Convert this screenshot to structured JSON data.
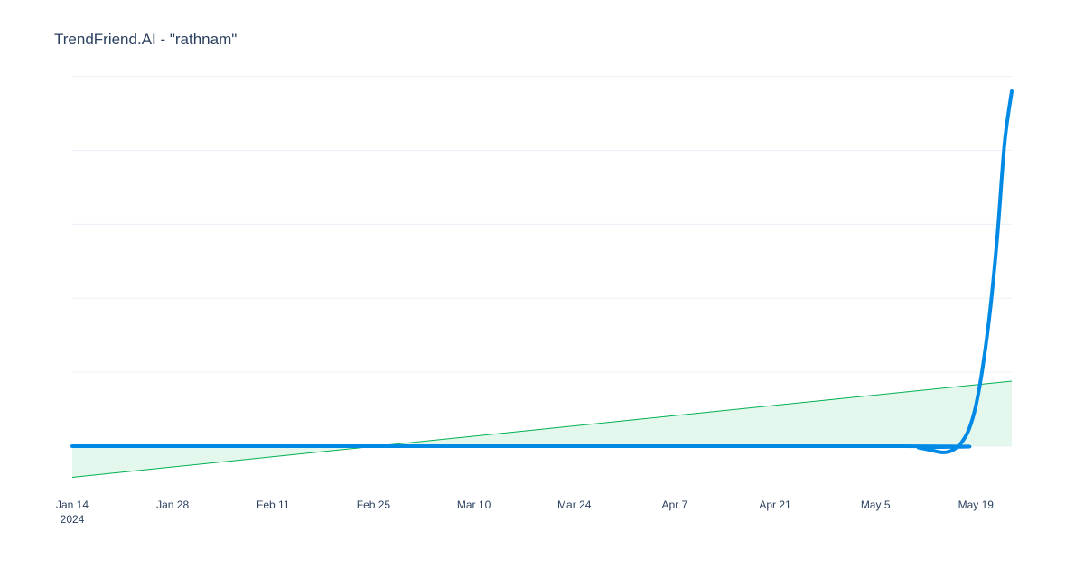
{
  "chart_data": {
    "type": "line",
    "title": "TrendFriend.AI - \"rathnam\"",
    "x_ticks": [
      {
        "date": "2024-01-14",
        "label": "Jan 14",
        "sublabel": "2024"
      },
      {
        "date": "2024-01-28",
        "label": "Jan 28"
      },
      {
        "date": "2024-02-11",
        "label": "Feb 11"
      },
      {
        "date": "2024-02-25",
        "label": "Feb 25"
      },
      {
        "date": "2024-03-10",
        "label": "Mar 10"
      },
      {
        "date": "2024-03-24",
        "label": "Mar 24"
      },
      {
        "date": "2024-04-07",
        "label": "Apr 7"
      },
      {
        "date": "2024-04-21",
        "label": "Apr 21"
      },
      {
        "date": "2024-05-05",
        "label": "May 5"
      },
      {
        "date": "2024-05-19",
        "label": "May 19"
      }
    ],
    "xlim": [
      "2024-01-14",
      "2024-05-24"
    ],
    "ylim": [
      -0.5,
      5.3
    ],
    "grid": {
      "y_values": [
        0,
        1,
        2,
        3,
        4,
        5
      ]
    },
    "y_tick_labels_shown": false,
    "series": [
      {
        "kind": "line",
        "color": "#008ae6",
        "points": [
          {
            "x": "2024-01-14",
            "y": 0
          },
          {
            "x": "2024-05-09",
            "y": 0
          },
          {
            "x": "2024-05-11",
            "y": -0.02
          },
          {
            "x": "2024-05-13",
            "y": -0.06
          },
          {
            "x": "2024-05-14",
            "y": -0.08
          },
          {
            "x": "2024-05-15",
            "y": -0.08
          },
          {
            "x": "2024-05-16",
            "y": -0.04
          },
          {
            "x": "2024-05-17",
            "y": 0.05
          },
          {
            "x": "2024-05-18",
            "y": 0.22
          },
          {
            "x": "2024-05-19",
            "y": 0.55
          },
          {
            "x": "2024-05-20",
            "y": 1.1
          },
          {
            "x": "2024-05-21",
            "y": 1.85
          },
          {
            "x": "2024-05-22",
            "y": 2.85
          },
          {
            "x": "2024-05-23",
            "y": 4.1
          },
          {
            "x": "2024-05-24",
            "y": 4.8
          }
        ]
      },
      {
        "kind": "trend",
        "color": "#00b050",
        "fill": "#e3f7ec",
        "fill_to": 0,
        "points": [
          {
            "x": "2024-01-14",
            "y": -0.42
          },
          {
            "x": "2024-05-24",
            "y": 0.88
          }
        ]
      }
    ]
  }
}
